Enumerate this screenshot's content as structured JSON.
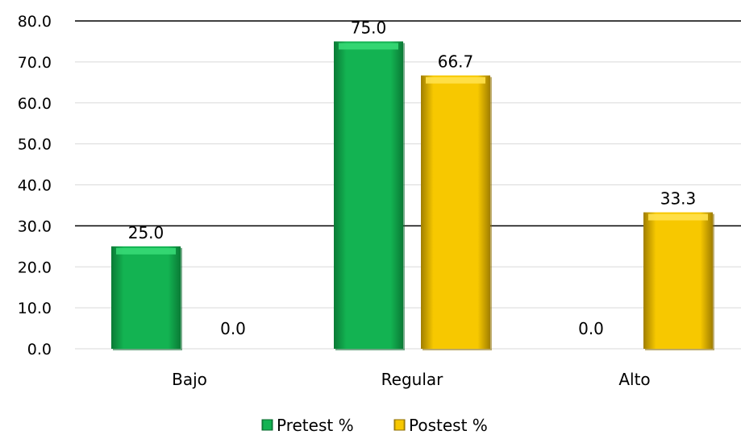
{
  "chart_data": {
    "type": "bar",
    "categories": [
      "Bajo",
      "Regular",
      "Alto"
    ],
    "series": [
      {
        "name": "Pretest %",
        "values": [
          25.0,
          75.0,
          0.0
        ],
        "color": "#12b24f"
      },
      {
        "name": "Postest %",
        "values": [
          0.0,
          66.7,
          33.3
        ],
        "color": "#f5c400"
      }
    ],
    "data_labels": [
      [
        "25.0",
        "75.0",
        "0.0"
      ],
      [
        "0.0",
        "66.7",
        "33.3"
      ]
    ],
    "ylim": [
      0,
      80
    ],
    "yticks": [
      "0.0",
      "10.0",
      "20.0",
      "30.0",
      "40.0",
      "50.0",
      "60.0",
      "70.0",
      "80.0"
    ],
    "grid": true,
    "legend_position": "bottom"
  }
}
